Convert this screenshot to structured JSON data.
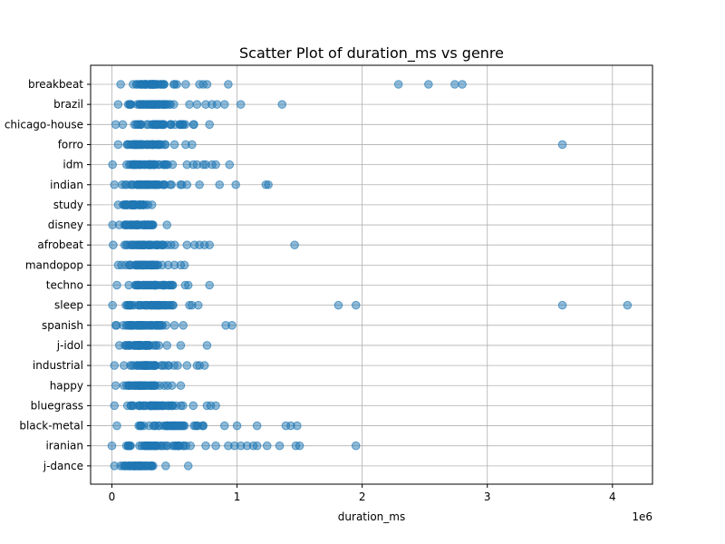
{
  "chart_data": {
    "type": "scatter",
    "title": "Scatter Plot of duration_ms vs genre",
    "xlabel": "duration_ms",
    "ylabel": "",
    "x_multiplier_label": "1e6",
    "xlim": [
      -170000,
      4320000
    ],
    "x_ticks": [
      0,
      1000000,
      2000000,
      3000000,
      4000000
    ],
    "x_tick_labels": [
      "0",
      "1",
      "2",
      "3",
      "4"
    ],
    "grid": true,
    "marker_color": "#1f77b4",
    "marker_alpha": 0.5,
    "categories": [
      "breakbeat",
      "brazil",
      "chicago-house",
      "forro",
      "idm",
      "indian",
      "study",
      "disney",
      "afrobeat",
      "mandopop",
      "techno",
      "sleep",
      "spanish",
      "j-idol",
      "industrial",
      "happy",
      "bluegrass",
      "black-metal",
      "iranian",
      "j-dance"
    ],
    "series": [
      {
        "category": "breakbeat",
        "dense_range": [
          70000,
          590000
        ],
        "outliers": [
          700000,
          730000,
          760000,
          930000,
          2290000,
          2530000,
          2740000,
          2800000
        ]
      },
      {
        "category": "brazil",
        "dense_range": [
          50000,
          620000
        ],
        "outliers": [
          680000,
          750000,
          800000,
          840000,
          900000,
          1030000,
          1360000
        ]
      },
      {
        "category": "chicago-house",
        "dense_range": [
          30000,
          780000
        ],
        "outliers": []
      },
      {
        "category": "forro",
        "dense_range": [
          50000,
          500000
        ],
        "outliers": [
          590000,
          640000,
          3600000
        ]
      },
      {
        "category": "idm",
        "dense_range": [
          5000,
          600000
        ],
        "outliers": [
          650000,
          680000,
          730000,
          750000,
          800000,
          830000,
          940000
        ]
      },
      {
        "category": "indian",
        "dense_range": [
          20000,
          560000
        ],
        "outliers": [
          600000,
          700000,
          860000,
          990000,
          1230000,
          1250000
        ]
      },
      {
        "category": "study",
        "dense_range": [
          50000,
          320000
        ],
        "outliers": []
      },
      {
        "category": "disney",
        "dense_range": [
          5000,
          440000
        ],
        "outliers": []
      },
      {
        "category": "afrobeat",
        "dense_range": [
          10000,
          600000
        ],
        "outliers": [
          660000,
          700000,
          740000,
          780000,
          1460000
        ]
      },
      {
        "category": "mandopop",
        "dense_range": [
          50000,
          450000
        ],
        "outliers": [
          500000,
          550000,
          580000
        ]
      },
      {
        "category": "techno",
        "dense_range": [
          40000,
          610000
        ],
        "outliers": [
          780000
        ]
      },
      {
        "category": "sleep",
        "dense_range": [
          5000,
          620000
        ],
        "outliers": [
          640000,
          690000,
          1810000,
          1950000,
          3600000,
          4120000
        ]
      },
      {
        "category": "spanish",
        "dense_range": [
          30000,
          500000
        ],
        "outliers": [
          570000,
          910000,
          960000
        ]
      },
      {
        "category": "j-idol",
        "dense_range": [
          60000,
          440000
        ],
        "outliers": [
          550000,
          760000
        ]
      },
      {
        "category": "industrial",
        "dense_range": [
          20000,
          600000
        ],
        "outliers": [
          680000,
          700000,
          740000
        ]
      },
      {
        "category": "happy",
        "dense_range": [
          30000,
          480000
        ],
        "outliers": [
          550000
        ]
      },
      {
        "category": "bluegrass",
        "dense_range": [
          20000,
          650000
        ],
        "outliers": [
          760000,
          790000,
          830000
        ]
      },
      {
        "category": "black-metal",
        "dense_range": [
          40000,
          900000
        ],
        "outliers": [
          1000000,
          1160000,
          1390000,
          1430000,
          1480000
        ]
      },
      {
        "category": "iranian",
        "dense_range": [
          0,
          750000
        ],
        "outliers": [
          830000,
          930000,
          980000,
          1030000,
          1080000,
          1130000,
          1160000,
          1240000,
          1340000,
          1470000,
          1500000,
          1950000
        ]
      },
      {
        "category": "j-dance",
        "dense_range": [
          20000,
          430000
        ],
        "outliers": [
          610000
        ]
      }
    ]
  }
}
